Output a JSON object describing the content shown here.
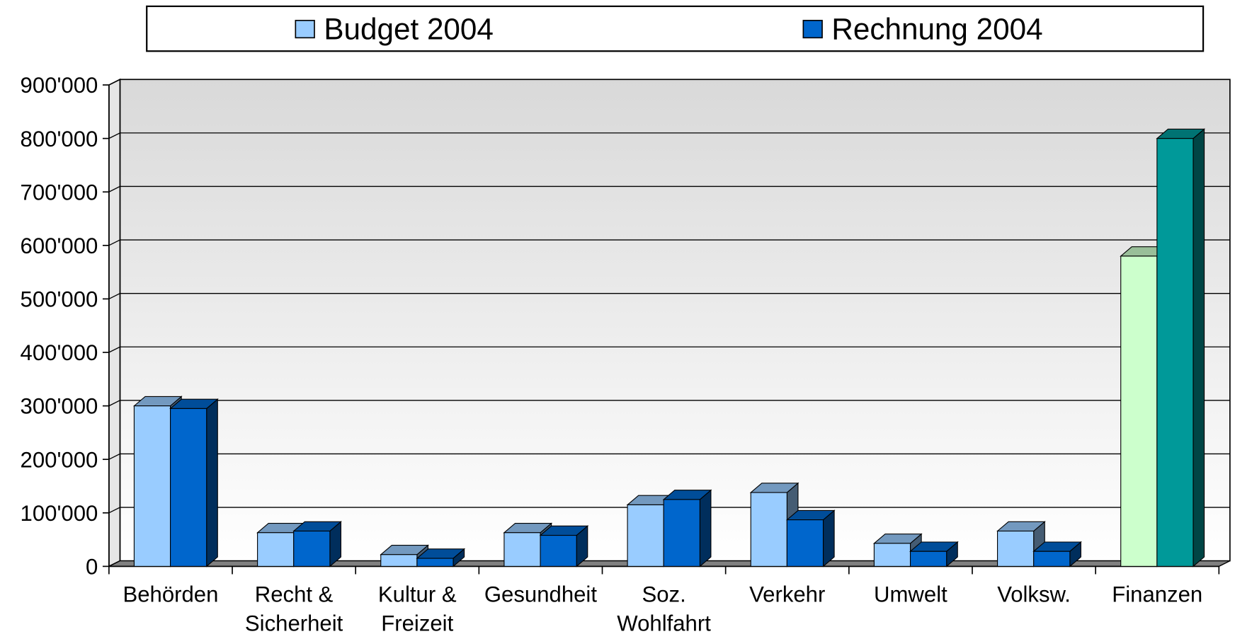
{
  "chart_data": {
    "type": "bar3d",
    "categories": [
      "Behörden",
      "Recht &\nSicherheit",
      "Kultur &\nFreizeit",
      "Gesundheit",
      "Soz.\nWohlfahrt",
      "Verkehr",
      "Umwelt",
      "Volksw.",
      "Finanzen"
    ],
    "series": [
      {
        "name": "Budget 2004",
        "color": "#99ccff",
        "colors": [
          "#99ccff",
          "#99ccff",
          "#99ccff",
          "#99ccff",
          "#99ccff",
          "#99ccff",
          "#99ccff",
          "#99ccff",
          "#ccffcc"
        ],
        "values": [
          300000,
          63000,
          22000,
          63000,
          115000,
          138000,
          43000,
          66000,
          580000
        ]
      },
      {
        "name": "Rechnung 2004",
        "color": "#0066cc",
        "colors": [
          "#0066cc",
          "#0066cc",
          "#0066cc",
          "#0066cc",
          "#0066cc",
          "#0066cc",
          "#0066cc",
          "#0066cc",
          "#009999"
        ],
        "values": [
          295000,
          66000,
          15000,
          58000,
          125000,
          87000,
          28000,
          28000,
          800000
        ]
      }
    ],
    "ylim": [
      0,
      900000
    ],
    "yticks": [
      0,
      {
        "value": 100000,
        "label": "100'000"
      },
      {
        "value": 200000,
        "label": "200'000"
      },
      {
        "value": 300000,
        "label": "300'000"
      },
      {
        "value": 400000,
        "label": "400'000"
      },
      {
        "value": 500000,
        "label": "500'000"
      },
      {
        "value": 600000,
        "label": "600'000"
      },
      {
        "value": 700000,
        "label": "700'000"
      },
      {
        "value": 800000,
        "label": "800'000"
      },
      {
        "value": 900000,
        "label": "900'000"
      }
    ],
    "grid": true,
    "legend": "top"
  }
}
